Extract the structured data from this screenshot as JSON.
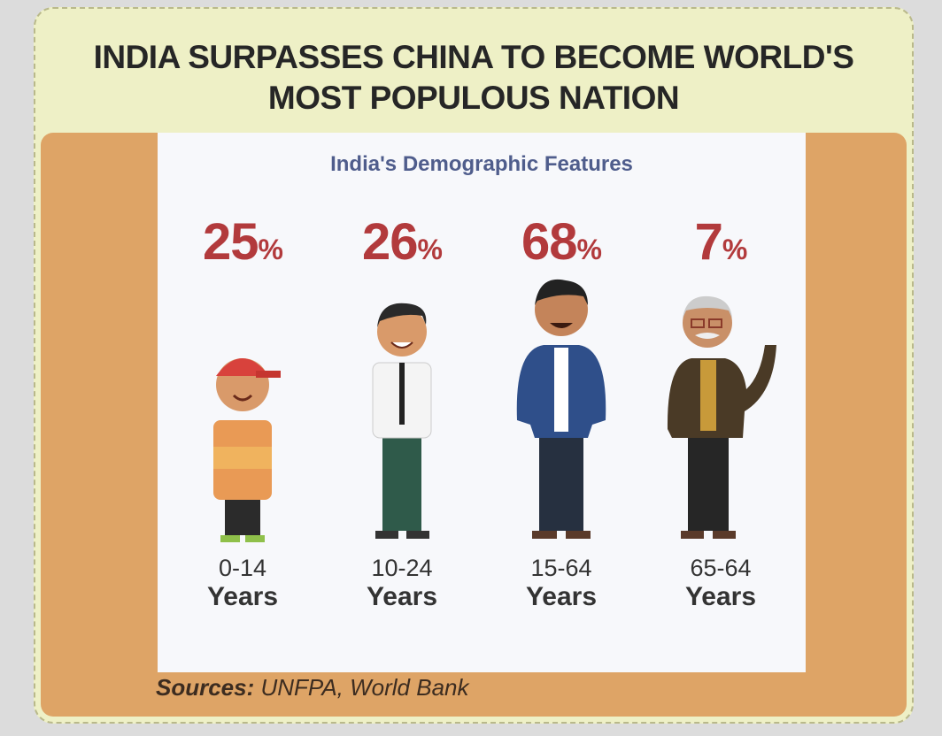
{
  "title_line1": "INDIA SURPASSES CHINA TO BECOME WORLD'S",
  "title_line2": "MOST POPULOUS NATION",
  "subtitle": "India's Demographic Features",
  "groups": [
    {
      "value": "25",
      "unit": "%",
      "range": "0-14",
      "label": "Years"
    },
    {
      "value": "26",
      "unit": "%",
      "range": "10-24",
      "label": "Years"
    },
    {
      "value": "68",
      "unit": "%",
      "range": "15-64",
      "label": "Years"
    },
    {
      "value": "7",
      "unit": "%",
      "range": "65-64",
      "label": "Years"
    }
  ],
  "sources_label": "Sources:",
  "sources_text": " UNFPA, World Bank"
}
